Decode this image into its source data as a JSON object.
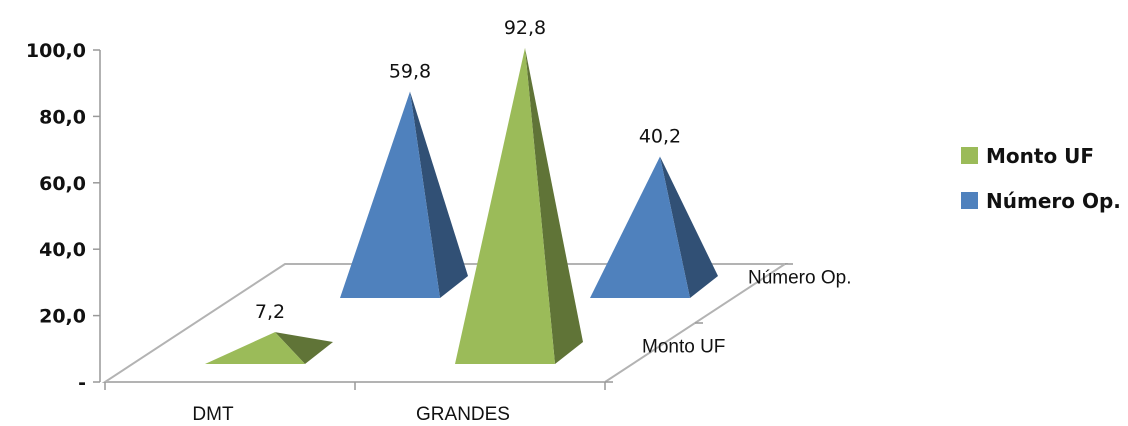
{
  "chart_data": {
    "type": "bar",
    "title": "",
    "categories": [
      "DMT",
      "GRANDES"
    ],
    "series": [
      {
        "name": "Monto UF",
        "values": [
          7.2,
          92.8
        ],
        "data_labels": [
          "7,2",
          "92,8"
        ],
        "color": "#9bbb59"
      },
      {
        "name": "Número Op.",
        "values": [
          59.8,
          40.2
        ],
        "data_labels": [
          "59,8",
          "40,2"
        ],
        "color": "#4f81bd"
      }
    ],
    "depth_labels": [
      "Monto UF",
      "Número Op."
    ],
    "y_ticks": [
      "-",
      "20,0",
      "40,0",
      "60,0",
      "80,0",
      "100,0"
    ],
    "ylim": [
      0,
      100
    ],
    "grid": false,
    "legend_position": "right",
    "shape": "3d-pyramid"
  }
}
